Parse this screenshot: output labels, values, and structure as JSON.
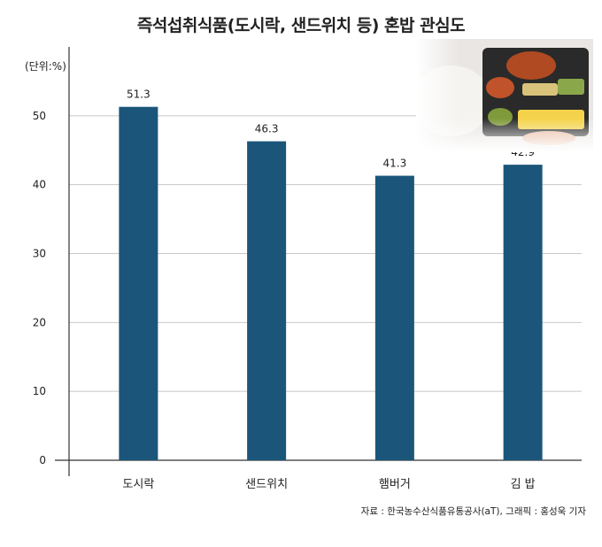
{
  "chart_data": {
    "type": "bar",
    "title": "즉석섭취식품(도시락, 샌드위치 등) 혼밥 관심도",
    "unit": "(단위:%)",
    "categories": [
      "도시락",
      "샌드위치",
      "햄버거",
      "김 밥"
    ],
    "values": [
      51.3,
      46.3,
      41.3,
      42.9
    ],
    "value_labels": [
      "51.3",
      "46.3",
      "41.3",
      "42.9"
    ],
    "ylim": [
      0,
      60
    ],
    "yticks": [
      0,
      10,
      20,
      30,
      40,
      50
    ],
    "grid": true,
    "bar_color": "#1b567a",
    "source": "자료 : 한국농수산식품유통공사(aT), 그래픽 : 홍성욱 기자"
  }
}
